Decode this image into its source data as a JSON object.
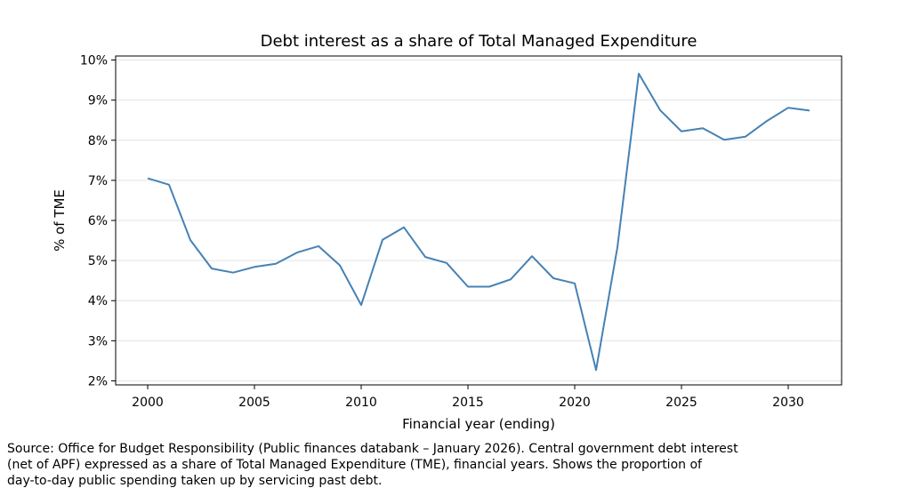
{
  "chart_data": {
    "type": "line",
    "title": "Debt interest as a share of Total Managed Expenditure",
    "xlabel": "Financial year (ending)",
    "ylabel": "% of TME",
    "xlim": [
      1998.5,
      2032.5
    ],
    "ylim": [
      1.9,
      10.1
    ],
    "x_ticks": [
      2000,
      2005,
      2010,
      2015,
      2020,
      2025,
      2030
    ],
    "y_ticks": [
      2,
      3,
      4,
      5,
      6,
      7,
      8,
      9,
      10
    ],
    "y_tick_labels": [
      "2%",
      "3%",
      "4%",
      "5%",
      "6%",
      "7%",
      "8%",
      "9%",
      "10%"
    ],
    "grid": "horizontal",
    "line_color": "#4682b4",
    "series": [
      {
        "name": "Debt interest share of TME",
        "x": [
          2000,
          2001,
          2002,
          2003,
          2004,
          2005,
          2006,
          2007,
          2008,
          2009,
          2010,
          2011,
          2012,
          2013,
          2014,
          2015,
          2016,
          2017,
          2018,
          2019,
          2020,
          2021,
          2022,
          2023,
          2024,
          2025,
          2026,
          2027,
          2028,
          2029,
          2030,
          2031
        ],
        "values": [
          7.05,
          6.89,
          5.51,
          4.8,
          4.7,
          4.84,
          4.92,
          5.2,
          5.36,
          4.88,
          3.89,
          5.52,
          5.83,
          5.09,
          4.94,
          4.35,
          4.35,
          4.53,
          5.11,
          4.56,
          4.43,
          2.27,
          5.33,
          9.66,
          8.75,
          8.22,
          8.3,
          8.01,
          8.09,
          8.48,
          8.81,
          8.74
        ]
      }
    ]
  },
  "source_note": "Source: Office for Budget Responsibility (Public finances databank – January 2026). Central government debt interest\n(net of APF) expressed as a share of Total Managed Expenditure (TME), financial years. Shows the proportion of\nday-to-day public spending taken up by servicing past debt."
}
